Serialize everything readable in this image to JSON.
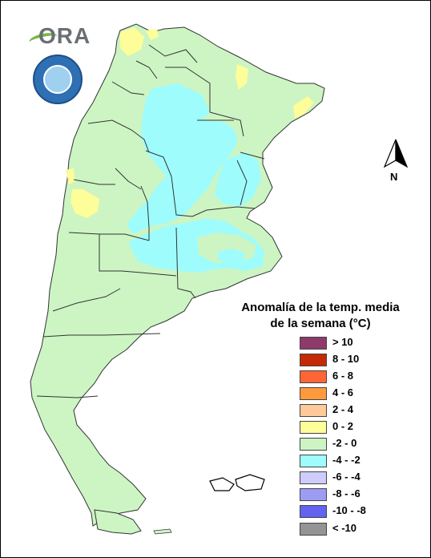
{
  "title": {
    "line1": "Anomalía de la temp. media",
    "line2": "de la semana (°C)"
  },
  "legend": [
    {
      "label": "> 10",
      "color": "#8e3a6b"
    },
    {
      "label": "8 - 10",
      "color": "#c42a06"
    },
    {
      "label": "6 - 8",
      "color": "#ff6535"
    },
    {
      "label": "4 - 6",
      "color": "#ff9a3c"
    },
    {
      "label": "2 - 4",
      "color": "#ffc99a"
    },
    {
      "label": "0 - 2",
      "color": "#fdfd9a"
    },
    {
      "label": "-2 - 0",
      "color": "#ccf5c3"
    },
    {
      "label": "-4 - -2",
      "color": "#9ffcfc"
    },
    {
      "label": "-6 - -4",
      "color": "#cfcbfa"
    },
    {
      "label": "-8 - -6",
      "color": "#9d9cf5"
    },
    {
      "label": "-10 - -8",
      "color": "#6363f0"
    },
    {
      "label": "< -10",
      "color": "#949494"
    }
  ],
  "north_label": "N",
  "logos": {
    "ora": "ORA",
    "smn": "Servicio Meteorológico Nacional Argentina"
  },
  "map_colors": {
    "base": "#ccf5c3",
    "cold": "#9ffcfc",
    "warm": "#fdfd9a",
    "border": "#333333"
  }
}
